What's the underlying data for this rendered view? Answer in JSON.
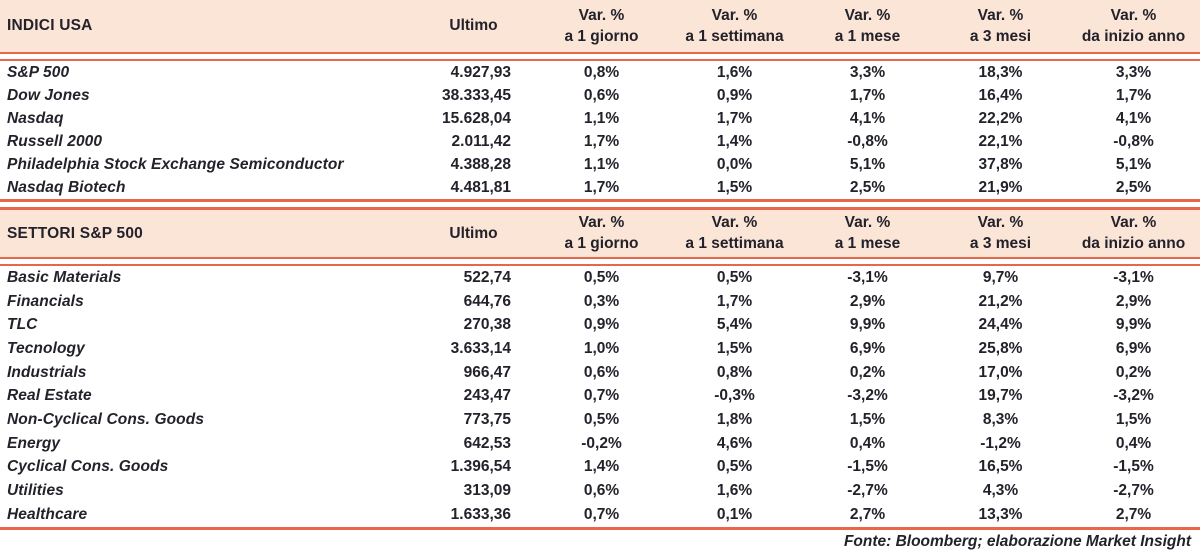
{
  "columns": {
    "ultimo_label": "Ultimo",
    "var_label": "Var. %",
    "periods": [
      "a 1 giorno",
      "a 1 settimana",
      "a 1 mese",
      "a 3 mesi",
      "da inizio anno"
    ]
  },
  "tables": [
    {
      "title": "INDICI USA",
      "rows": [
        {
          "label": "S&P 500",
          "ultimo": "4.927,93",
          "vars": [
            "0,8%",
            "1,6%",
            "3,3%",
            "18,3%",
            "3,3%"
          ]
        },
        {
          "label": "Dow Jones",
          "ultimo": "38.333,45",
          "vars": [
            "0,6%",
            "0,9%",
            "1,7%",
            "16,4%",
            "1,7%"
          ]
        },
        {
          "label": "Nasdaq",
          "ultimo": "15.628,04",
          "vars": [
            "1,1%",
            "1,7%",
            "4,1%",
            "22,2%",
            "4,1%"
          ]
        },
        {
          "label": "Russell 2000",
          "ultimo": "2.011,42",
          "vars": [
            "1,7%",
            "1,4%",
            "-0,8%",
            "22,1%",
            "-0,8%"
          ]
        },
        {
          "label": "Philadelphia Stock Exchange Semiconductor",
          "ultimo": "4.388,28",
          "vars": [
            "1,1%",
            "0,0%",
            "5,1%",
            "37,8%",
            "5,1%"
          ]
        },
        {
          "label": "Nasdaq Biotech",
          "ultimo": "4.481,81",
          "vars": [
            "1,7%",
            "1,5%",
            "2,5%",
            "21,9%",
            "2,5%"
          ]
        }
      ]
    },
    {
      "title": "SETTORI S&P 500",
      "rows": [
        {
          "label": "Basic Materials",
          "ultimo": "522,74",
          "vars": [
            "0,5%",
            "0,5%",
            "-3,1%",
            "9,7%",
            "-3,1%"
          ]
        },
        {
          "label": "Financials",
          "ultimo": "644,76",
          "vars": [
            "0,3%",
            "1,7%",
            "2,9%",
            "21,2%",
            "2,9%"
          ]
        },
        {
          "label": "TLC",
          "ultimo": "270,38",
          "vars": [
            "0,9%",
            "5,4%",
            "9,9%",
            "24,4%",
            "9,9%"
          ]
        },
        {
          "label": "Tecnology",
          "ultimo": "3.633,14",
          "vars": [
            "1,0%",
            "1,5%",
            "6,9%",
            "25,8%",
            "6,9%"
          ]
        },
        {
          "label": "Industrials",
          "ultimo": "966,47",
          "vars": [
            "0,6%",
            "0,8%",
            "0,2%",
            "17,0%",
            "0,2%"
          ]
        },
        {
          "label": "Real Estate",
          "ultimo": "243,47",
          "vars": [
            "0,7%",
            "-0,3%",
            "-3,2%",
            "19,7%",
            "-3,2%"
          ]
        },
        {
          "label": "Non-Cyclical Cons. Goods",
          "ultimo": "773,75",
          "vars": [
            "0,5%",
            "1,8%",
            "1,5%",
            "8,3%",
            "1,5%"
          ]
        },
        {
          "label": "Energy",
          "ultimo": "642,53",
          "vars": [
            "-0,2%",
            "4,6%",
            "0,4%",
            "-1,2%",
            "0,4%"
          ]
        },
        {
          "label": "Cyclical Cons. Goods",
          "ultimo": "1.396,54",
          "vars": [
            "1,4%",
            "0,5%",
            "-1,5%",
            "16,5%",
            "-1,5%"
          ]
        },
        {
          "label": "Utilities",
          "ultimo": "313,09",
          "vars": [
            "0,6%",
            "1,6%",
            "-2,7%",
            "4,3%",
            "-2,7%"
          ]
        },
        {
          "label": "Healthcare",
          "ultimo": "1.633,36",
          "vars": [
            "0,7%",
            "0,1%",
            "2,7%",
            "13,3%",
            "2,7%"
          ]
        }
      ]
    }
  ],
  "footer": "Fonte: Bloomberg; elaborazione Market Insight",
  "colors": {
    "header_bg": "#fbe5d6",
    "rule": "#e8674b",
    "text": "#23222b"
  }
}
